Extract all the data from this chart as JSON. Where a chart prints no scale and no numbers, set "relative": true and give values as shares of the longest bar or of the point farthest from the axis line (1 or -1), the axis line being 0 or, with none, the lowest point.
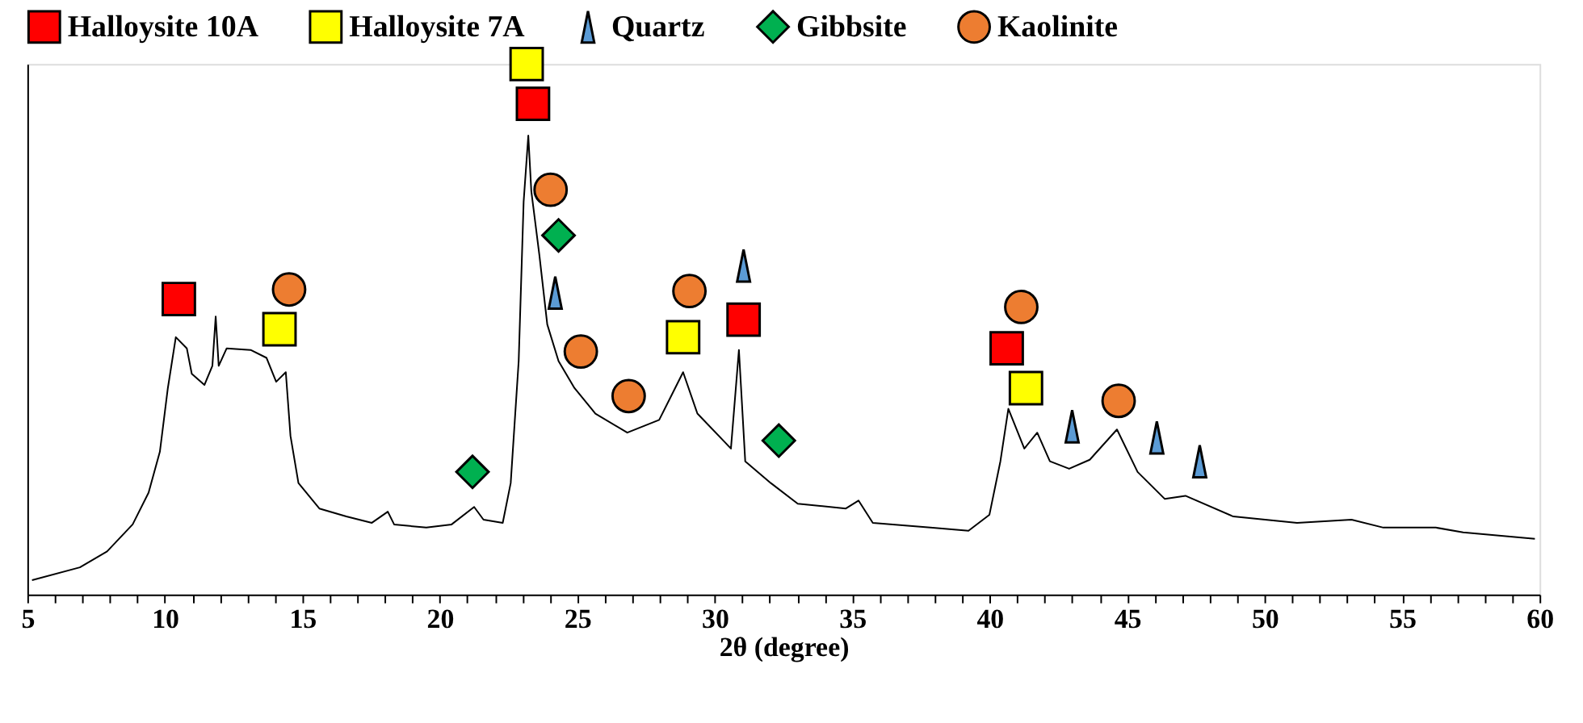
{
  "chart_data": {
    "type": "line",
    "relative": true,
    "xlabel": "2θ (degree)",
    "xlim": [
      5,
      60
    ],
    "xticks": [
      5,
      {
        "value": 6,
        "label": null
      },
      {
        "value": 7,
        "label": null
      },
      {
        "value": 8,
        "label": null
      },
      {
        "value": 9,
        "label": null
      },
      10,
      {
        "value": 11,
        "label": null
      },
      {
        "value": 12,
        "label": null
      },
      {
        "value": 13,
        "label": null
      },
      {
        "value": 14,
        "label": null
      },
      15,
      {
        "value": 16,
        "label": null
      },
      {
        "value": 17,
        "label": null
      },
      {
        "value": 18,
        "label": null
      },
      {
        "value": 19,
        "label": null
      },
      20,
      {
        "value": 21,
        "label": null
      },
      {
        "value": 22,
        "label": null
      },
      {
        "value": 23,
        "label": null
      },
      {
        "value": 24,
        "label": null
      },
      25,
      {
        "value": 26,
        "label": null
      },
      {
        "value": 27,
        "label": null
      },
      {
        "value": 28,
        "label": null
      },
      {
        "value": 29,
        "label": null
      },
      30,
      {
        "value": 31,
        "label": null
      },
      {
        "value": 32,
        "label": null
      },
      {
        "value": 33,
        "label": null
      },
      {
        "value": 34,
        "label": null
      },
      35,
      {
        "value": 36,
        "label": null
      },
      {
        "value": 37,
        "label": null
      },
      {
        "value": 38,
        "label": null
      },
      {
        "value": 39,
        "label": null
      },
      40,
      {
        "value": 41,
        "label": null
      },
      {
        "value": 42,
        "label": null
      },
      {
        "value": 43,
        "label": null
      },
      {
        "value": 44,
        "label": null
      },
      45,
      {
        "value": 46,
        "label": null
      },
      {
        "value": 47,
        "label": null
      },
      {
        "value": 48,
        "label": null
      },
      {
        "value": 49,
        "label": null
      },
      50,
      {
        "value": 51,
        "label": null
      },
      {
        "value": 52,
        "label": null
      },
      {
        "value": 53,
        "label": null
      },
      {
        "value": 54,
        "label": null
      },
      55,
      {
        "value": 56,
        "label": null
      },
      {
        "value": 57,
        "label": null
      },
      {
        "value": 58,
        "label": null
      },
      {
        "value": 59,
        "label": null
      },
      60
    ],
    "grid": false,
    "legend": "top",
    "series": [
      {
        "type": "line",
        "color": "#000000",
        "marker": "none",
        "line_style": "solid",
        "x": [
          5.17,
          6.91,
          7.9,
          8.83,
          9.41,
          9.82,
          10.11,
          10.4,
          10.8,
          10.98,
          11.44,
          11.73,
          11.85,
          11.96,
          12.25,
          13.12,
          13.7,
          14.05,
          14.4,
          14.57,
          14.86,
          15.62,
          16.6,
          17.53,
          18.11,
          18.34,
          19.51,
          20.43,
          21.25,
          21.59,
          22.29,
          22.58,
          22.87,
          23.05,
          23.22,
          23.33,
          23.62,
          23.91,
          24.32,
          24.9,
          25.66,
          26.82,
          27.98,
          28.85,
          29.37,
          30.59,
          30.88,
          31.11,
          32.04,
          33.02,
          34.77,
          35.23,
          35.75,
          37.84,
          39.23,
          39.99,
          40.39,
          40.68,
          41.26,
          41.73,
          42.19,
          42.89,
          43.64,
          44.63,
          45.38,
          46.37,
          47.12,
          48.86,
          51.18,
          53.16,
          54.32,
          56.23,
          57.22,
          59.83
        ],
        "values": [
          0.027,
          0.051,
          0.081,
          0.132,
          0.192,
          0.269,
          0.389,
          0.485,
          0.464,
          0.416,
          0.395,
          0.431,
          0.524,
          0.431,
          0.464,
          0.461,
          0.446,
          0.401,
          0.419,
          0.299,
          0.21,
          0.162,
          0.147,
          0.135,
          0.156,
          0.132,
          0.126,
          0.132,
          0.165,
          0.141,
          0.135,
          0.21,
          0.44,
          0.74,
          0.865,
          0.76,
          0.641,
          0.509,
          0.44,
          0.389,
          0.341,
          0.305,
          0.329,
          0.419,
          0.341,
          0.275,
          0.461,
          0.251,
          0.21,
          0.171,
          0.162,
          0.177,
          0.135,
          0.126,
          0.12,
          0.15,
          0.251,
          0.35,
          0.275,
          0.305,
          0.251,
          0.237,
          0.254,
          0.311,
          0.231,
          0.18,
          0.186,
          0.147,
          0.135,
          0.141,
          0.126,
          0.126,
          0.117,
          0.105
        ]
      },
      {
        "type": "scatter",
        "name": "Halloysite 10A",
        "color": "#ff0000",
        "marker": "square",
        "x": [
          10.51,
          23.39,
          31.05,
          40.62
        ],
        "values": [
          0.557,
          0.925,
          0.518,
          0.464
        ]
      },
      {
        "type": "scatter",
        "name": "Halloysite 7A",
        "color": "#ffff00",
        "marker": "square",
        "x": [
          14.17,
          23.16,
          28.85,
          41.32
        ],
        "values": [
          0.5,
          1.0,
          0.485,
          0.389
        ]
      },
      {
        "type": "scatter",
        "name": "Quartz",
        "color": "#5b9bd5",
        "marker": "triangle",
        "x": [
          24.2,
          31.05,
          43.0,
          46.08,
          47.64
        ],
        "values": [
          0.569,
          0.62,
          0.317,
          0.296,
          0.251
        ]
      },
      {
        "type": "scatter",
        "name": "Gibbsite",
        "color": "#00b050",
        "marker": "diamond",
        "x": [
          21.19,
          24.32,
          32.33
        ],
        "values": [
          0.231,
          0.677,
          0.29
        ]
      },
      {
        "type": "scatter",
        "name": "Kaolinite",
        "color": "#ed7d31",
        "marker": "circle",
        "x": [
          14.52,
          24.03,
          25.13,
          26.87,
          29.08,
          41.15,
          44.69
        ],
        "values": [
          0.575,
          0.763,
          0.458,
          0.374,
          0.572,
          0.542,
          0.365
        ]
      }
    ]
  }
}
